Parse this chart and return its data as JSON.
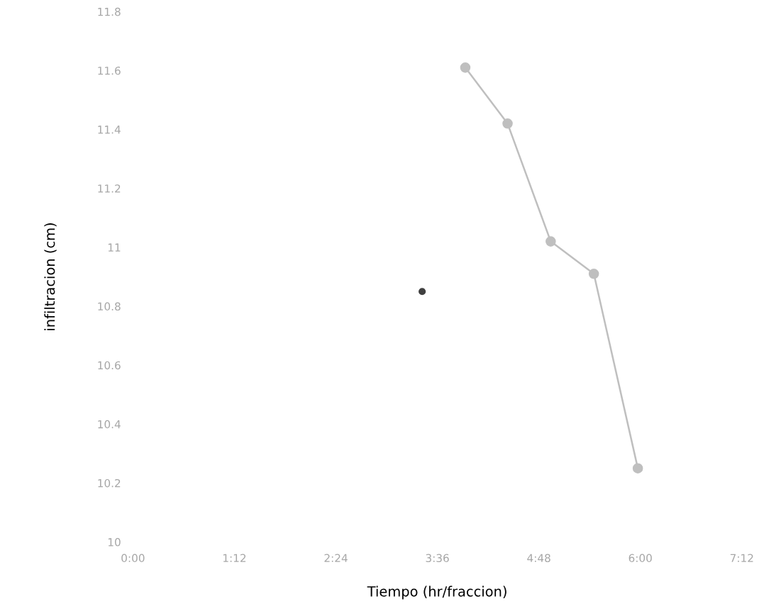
{
  "chart_data": {
    "type": "line",
    "xlabel": "Tiempo (hr/fraccion)",
    "ylabel": "infiltracion (cm)",
    "series": [
      {
        "type": "scatter",
        "color": "#404040",
        "x": [
          3.42
        ],
        "values": [
          10.85
        ]
      },
      {
        "type": "line",
        "color": "#bfbfbf",
        "x": [
          3.93,
          4.43,
          4.94,
          5.45,
          5.97
        ],
        "values": [
          11.61,
          11.42,
          11.02,
          10.91,
          10.25
        ]
      }
    ],
    "xlim": [
      0,
      7.2
    ],
    "ylim": [
      10,
      11.8
    ],
    "xticks": [
      {
        "value": 0,
        "label": "0:00"
      },
      {
        "value": 1.2,
        "label": "1:12"
      },
      {
        "value": 2.4,
        "label": "2:24"
      },
      {
        "value": 3.6,
        "label": "3:36"
      },
      {
        "value": 4.8,
        "label": "4:48"
      },
      {
        "value": 6.0,
        "label": "6:00"
      },
      {
        "value": 7.2,
        "label": "7:12"
      }
    ],
    "yticks": [
      10,
      10.2,
      10.4,
      10.6,
      10.8,
      11,
      11.2,
      11.4,
      11.6,
      11.8
    ],
    "grid": false,
    "marker": "circle",
    "line_style": "solid"
  }
}
